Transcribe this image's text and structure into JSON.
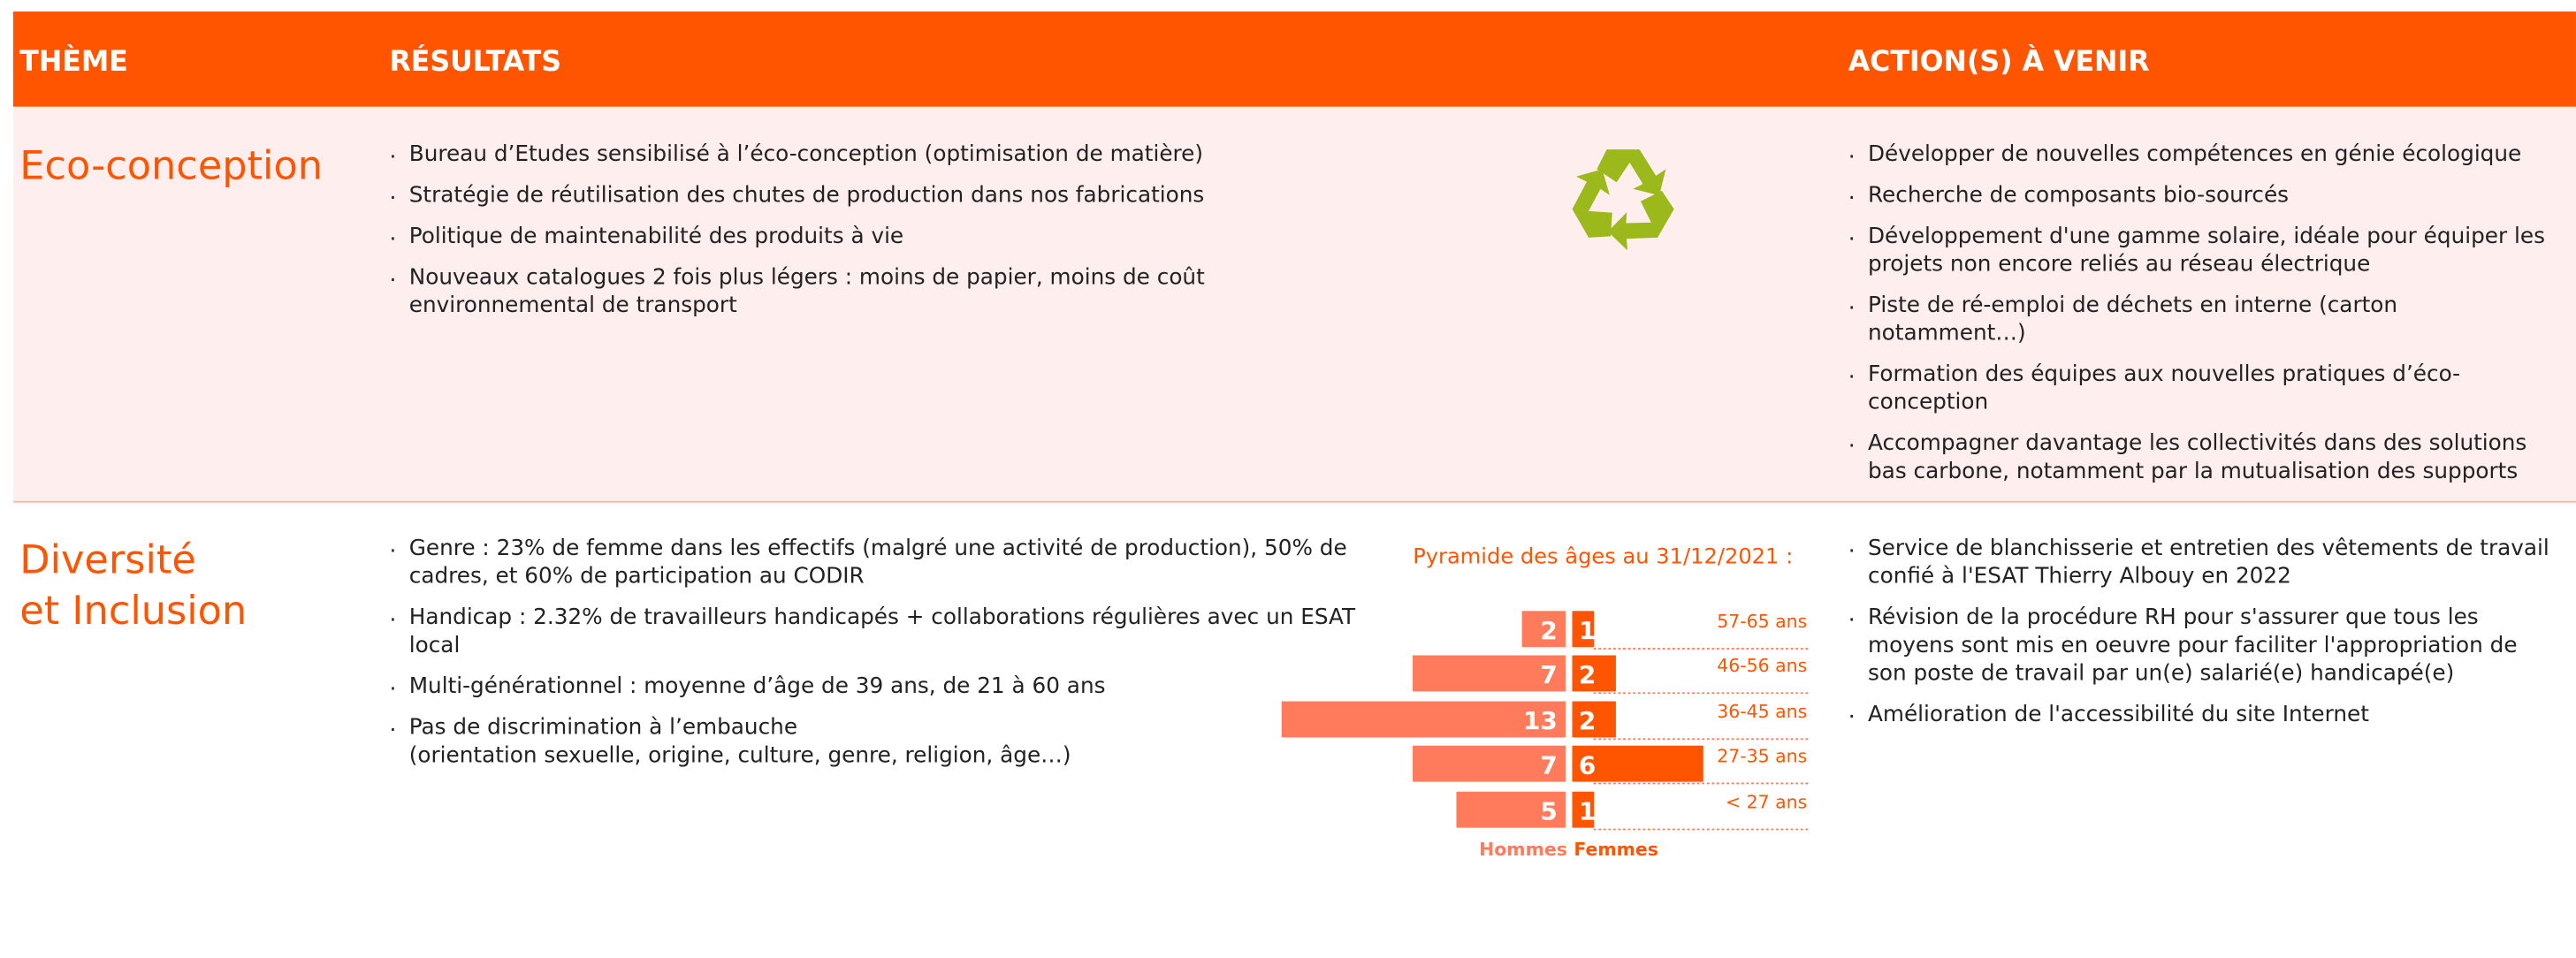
{
  "header": {
    "columns": [
      "THÈME",
      "RÉSULTATS",
      "ACTION(S) À VENIR"
    ]
  },
  "rows": [
    {
      "theme": [
        "Eco-conception"
      ],
      "results": [
        "Bureau d’Etudes sensibilisé à l’éco-conception (optimisation de matière)",
        "Stratégie de réutilisation des chutes de production dans nos fabrications",
        "Politique de maintenabilité des produits à vie",
        "Nouveaux catalogues 2 fois plus légers : moins de papier, moins de coût environnemental de transport"
      ],
      "actions": [
        "Développer de nouvelles compétences en génie écologique",
        "Recherche de composants bio-sourcés",
        "Développement d'une gamme solaire, idéale pour équiper les projets non encore reliés au réseau électrique",
        "Piste de ré-emploi de déchets en interne (carton notamment…)",
        "Formation des équipes aux nouvelles pratiques d’éco-conception",
        "Accompagner davantage les collectivités dans des solutions bas carbone, notamment par la mutualisation des supports"
      ]
    },
    {
      "theme": [
        "Diversité",
        "et Inclusion"
      ],
      "results": [
        "Genre : 23% de femme dans les effectifs (malgré une activité de production), 50% de cadres, et 60% de participation au CODIR",
        "Handicap : 2.32% de travailleurs handicapés + collaborations régulières avec un ESAT local",
        "Multi-générationnel : moyenne d’âge de 39 ans, de 21 à 60 ans",
        "Pas de discrimination à l’embauche\n(orientation sexuelle, origine, culture, genre, religion, âge…)"
      ],
      "actions": [
        "Service de blanchisserie et entretien des vêtements de travail confié à l'ESAT Thierry Albouy en 2022",
        "Révision de la procédure RH pour s'assurer que tous les moyens sont mis en oeuvre pour faciliter l'appropriation de son poste de travail par un(e) salarié(e) handicapé(e)",
        "Amélioration de l'accessibilité du site Internet"
      ]
    }
  ],
  "pyramid": {
    "type": "bar",
    "title": "Pyramide des âges au 31/12/2021 :",
    "categories": [
      "57-65 ans",
      "46-56 ans",
      "36-45 ans",
      "27-35 ans",
      "< 27 ans"
    ],
    "series": [
      {
        "name": "Hommes",
        "color": "#ff7b5c",
        "values": [
          2,
          7,
          13,
          7,
          5
        ]
      },
      {
        "name": "Femmes",
        "color": "#ff5500",
        "values": [
          1,
          2,
          2,
          6,
          1
        ]
      }
    ]
  }
}
